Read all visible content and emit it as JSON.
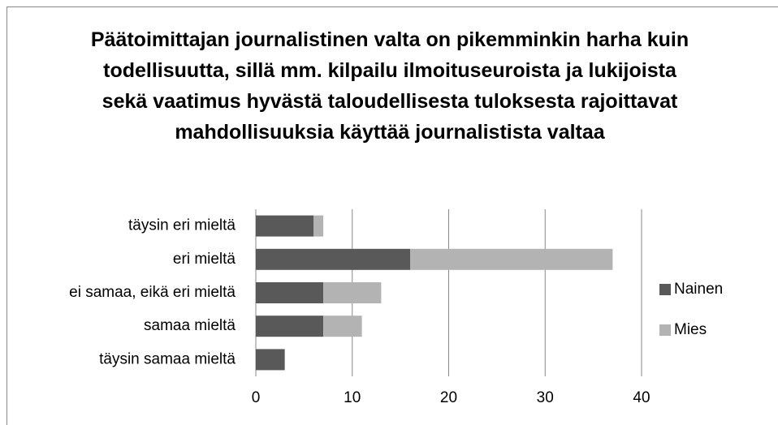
{
  "chart_data": {
    "type": "stacked-bar-horizontal",
    "title": "Päätoimittajan journalistinen valta on pikemminkin harha kuin todellisuutta, sillä mm. kilpailu ilmoituseuroista ja lukijoista sekä vaatimus hyvästä taloudellisesta tuloksesta rajoittavat mahdollisuuksia käyttää journalistista valtaa",
    "categories": [
      "täysin eri mieltä",
      "eri mieltä",
      "ei samaa, eikä eri mieltä",
      "samaa mieltä",
      "täysin samaa mieltä"
    ],
    "series": [
      {
        "name": "Nainen",
        "color": "#595959",
        "values": [
          6,
          16,
          7,
          7,
          3
        ]
      },
      {
        "name": "Mies",
        "color": "#b3b3b3",
        "values": [
          1,
          21,
          6,
          4,
          0
        ]
      }
    ],
    "xlim": [
      0,
      40
    ],
    "xticks": [
      0,
      10,
      20,
      30,
      40
    ],
    "grid": true,
    "legend": "right"
  }
}
